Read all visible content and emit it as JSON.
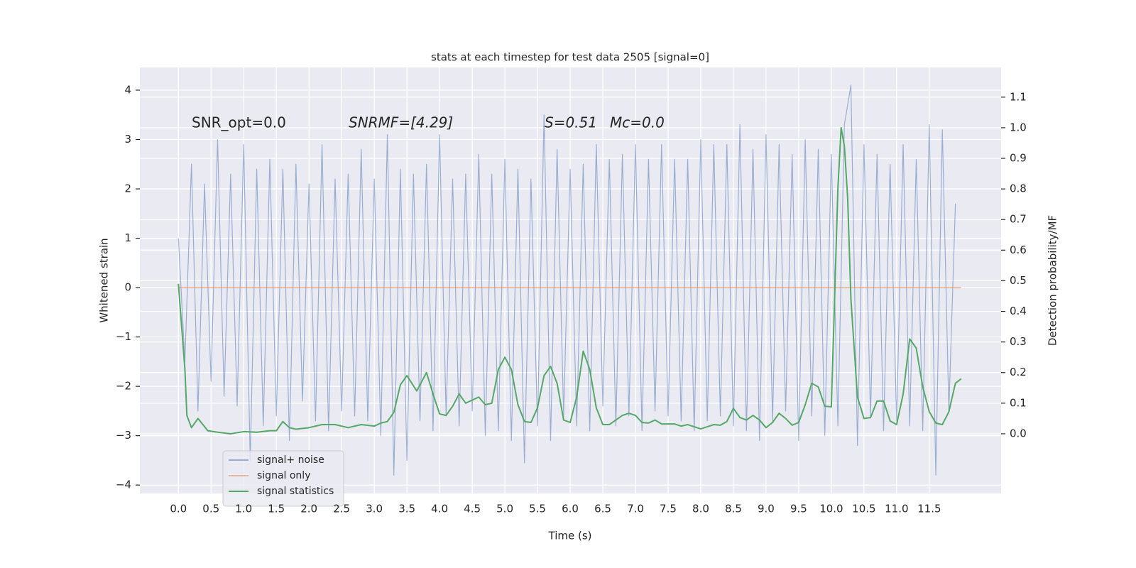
{
  "chart_data": {
    "type": "line",
    "title": "stats at each timestep for test data 2505 [signal=0]",
    "xlabel": "Time (s)",
    "ylabel": "Whitened strain",
    "y2label": "Detection probability/MF",
    "annotations": [
      "SNR_opt=0.0",
      "SNRMF=[4.29]",
      "S=0.51",
      "Mc=0.0"
    ],
    "xlim": [
      -0.59,
      12.6
    ],
    "ylim": [
      -4.17,
      4.46
    ],
    "y2lim": [
      -0.195,
      1.197
    ],
    "xticks": [
      {
        "value": 0,
        "label": "0.0"
      },
      0.5,
      {
        "value": 1,
        "label": "1.0"
      },
      1.5,
      {
        "value": 2,
        "label": "2.0"
      },
      2.5,
      {
        "value": 3,
        "label": "3.0"
      },
      3.5,
      {
        "value": 4,
        "label": "4.0"
      },
      4.5,
      {
        "value": 5,
        "label": "5.0"
      },
      5.5,
      {
        "value": 6,
        "label": "6.0"
      },
      6.5,
      {
        "value": 7,
        "label": "7.0"
      },
      7.5,
      {
        "value": 8,
        "label": "8.0"
      },
      8.5,
      {
        "value": 9,
        "label": "9.0"
      },
      9.5,
      {
        "value": 10,
        "label": "10.0"
      },
      10.5,
      {
        "value": 11,
        "label": "11.0"
      },
      11.5
    ],
    "yticks": [
      {
        "value": -4,
        "label": "−4"
      },
      {
        "value": -3,
        "label": "−3"
      },
      {
        "value": -2,
        "label": "−2"
      },
      {
        "value": -1,
        "label": "−1"
      },
      0,
      1,
      2,
      3,
      4
    ],
    "y2ticks": [
      {
        "value": 0,
        "label": "0.0"
      },
      0.1,
      0.2,
      0.3,
      0.4,
      0.5,
      0.6,
      0.7,
      0.8,
      0.9,
      {
        "value": 1,
        "label": "1.0"
      },
      1.1
    ],
    "grid": true,
    "legend": "lower left",
    "series": [
      {
        "name": "signal+ noise",
        "color": "#4c72b0",
        "alpha": 0.5,
        "x": [
          0,
          0.1,
          0.2,
          0.3,
          0.4,
          0.5,
          0.6,
          0.7,
          0.8,
          0.9,
          1,
          1.1,
          1.2,
          1.3,
          1.4,
          1.5,
          1.6,
          1.7,
          1.8,
          1.9,
          2,
          2.1,
          2.2,
          2.3,
          2.4,
          2.5,
          2.6,
          2.7,
          2.8,
          2.9,
          3,
          3.1,
          3.2,
          3.3,
          3.4,
          3.5,
          3.6,
          3.7,
          3.8,
          3.9,
          4,
          4.1,
          4.2,
          4.3,
          4.4,
          4.5,
          4.6,
          4.7,
          4.8,
          4.9,
          5,
          5.1,
          5.2,
          5.3,
          5.4,
          5.5,
          5.6,
          5.7,
          5.8,
          5.9,
          6,
          6.1,
          6.2,
          6.3,
          6.4,
          6.5,
          6.6,
          6.7,
          6.8,
          6.9,
          7,
          7.1,
          7.2,
          7.3,
          7.4,
          7.5,
          7.6,
          7.7,
          7.8,
          7.9,
          8,
          8.1,
          8.2,
          8.3,
          8.4,
          8.5,
          8.6,
          8.7,
          8.8,
          8.9,
          9,
          9.1,
          9.2,
          9.3,
          9.4,
          9.5,
          9.6,
          9.7,
          9.8,
          9.9,
          10,
          10.1,
          10.2,
          10.3,
          10.4,
          10.5,
          10.6,
          10.7,
          10.8,
          10.9,
          11,
          11.1,
          11.2,
          11.3,
          11.4,
          11.5,
          11.6,
          11.7,
          11.8,
          11.9
        ],
        "values": [
          1.0,
          -1.5,
          2.5,
          -2.5,
          2.1,
          -1.9,
          3.0,
          -2.2,
          2.3,
          -2.4,
          2.9,
          -3.5,
          2.4,
          -2.8,
          2.6,
          -2.6,
          2.4,
          -3.1,
          2.5,
          -2.3,
          2.1,
          -2.7,
          2.9,
          -2.9,
          2.2,
          -2.5,
          2.3,
          -2.6,
          2.8,
          -2.7,
          2.2,
          -3.0,
          3.1,
          -3.8,
          2.4,
          -3.5,
          2.3,
          -2.7,
          2.5,
          -2.9,
          3.1,
          -2.6,
          2.2,
          -2.8,
          2.3,
          -2.5,
          2.7,
          -3.0,
          2.3,
          -2.9,
          2.6,
          -3.1,
          2.4,
          -3.55,
          2.2,
          -2.8,
          3.5,
          -3.1,
          2.8,
          -2.6,
          2.4,
          -2.8,
          2.5,
          -2.9,
          2.9,
          -2.4,
          2.6,
          -2.8,
          2.7,
          -2.6,
          2.9,
          -2.9,
          2.6,
          -2.5,
          2.9,
          -2.6,
          2.6,
          -2.7,
          2.6,
          -2.9,
          3.0,
          -2.7,
          2.9,
          -2.6,
          2.9,
          -2.8,
          3.3,
          -2.9,
          2.8,
          -3.1,
          3.1,
          -2.7,
          2.9,
          -2.5,
          2.7,
          -3.1,
          3.0,
          -2.6,
          2.8,
          -3.0,
          2.7,
          -2.8,
          3.3,
          4.1,
          -3.2,
          2.9,
          -2.6,
          2.7,
          -2.9,
          2.5,
          -2.7,
          2.9,
          -2.8,
          2.6,
          -2.9,
          3.3,
          -3.8,
          3.2,
          -2.5,
          1.7
        ]
      },
      {
        "name": "signal only",
        "color": "#dd8452",
        "alpha": 0.5,
        "x": [
          0,
          11.99
        ],
        "values": [
          0,
          0
        ]
      },
      {
        "name": "signal statistics",
        "color": "#55a868",
        "alpha": 1,
        "axis": "y2",
        "x": [
          0,
          0.1,
          0.13,
          0.2,
          0.3,
          0.45,
          0.6,
          0.8,
          1.0,
          1.2,
          1.4,
          1.5,
          1.6,
          1.7,
          1.8,
          2.0,
          2.2,
          2.4,
          2.6,
          2.8,
          3.0,
          3.1,
          3.2,
          3.3,
          3.4,
          3.5,
          3.65,
          3.8,
          3.9,
          4.0,
          4.1,
          4.2,
          4.3,
          4.4,
          4.6,
          4.7,
          4.8,
          4.9,
          5.0,
          5.1,
          5.2,
          5.3,
          5.4,
          5.5,
          5.6,
          5.7,
          5.8,
          5.9,
          6.0,
          6.1,
          6.2,
          6.3,
          6.4,
          6.5,
          6.6,
          6.7,
          6.8,
          6.9,
          7.0,
          7.1,
          7.2,
          7.3,
          7.4,
          7.5,
          7.6,
          7.7,
          7.8,
          7.9,
          8.0,
          8.1,
          8.2,
          8.3,
          8.4,
          8.5,
          8.6,
          8.7,
          8.8,
          8.9,
          9.0,
          9.1,
          9.2,
          9.3,
          9.4,
          9.5,
          9.6,
          9.7,
          9.8,
          9.9,
          10.0,
          10.05,
          10.1,
          10.15,
          10.2,
          10.25,
          10.3,
          10.4,
          10.5,
          10.6,
          10.7,
          10.8,
          10.9,
          11.0,
          11.1,
          11.2,
          11.3,
          11.4,
          11.5,
          11.6,
          11.7,
          11.8,
          11.9,
          11.99
        ],
        "values": [
          0.49,
          0.21,
          0.06,
          0.02,
          0.05,
          0.01,
          0.005,
          0,
          0.007,
          0.005,
          0.01,
          0.01,
          0.04,
          0.02,
          0.015,
          0.02,
          0.03,
          0.03,
          0.02,
          0.03,
          0.025,
          0.035,
          0.04,
          0.07,
          0.16,
          0.19,
          0.14,
          0.2,
          0.13,
          0.065,
          0.06,
          0.09,
          0.13,
          0.1,
          0.12,
          0.095,
          0.1,
          0.21,
          0.25,
          0.21,
          0.095,
          0.04,
          0.037,
          0.085,
          0.19,
          0.22,
          0.165,
          0.045,
          0.037,
          0.12,
          0.27,
          0.21,
          0.085,
          0.03,
          0.03,
          0.045,
          0.06,
          0.067,
          0.06,
          0.037,
          0.035,
          0.045,
          0.032,
          0.032,
          0.032,
          0.025,
          0.03,
          0.023,
          0.016,
          0.023,
          0.03,
          0.028,
          0.04,
          0.083,
          0.053,
          0.045,
          0.06,
          0.045,
          0.02,
          0.037,
          0.067,
          0.05,
          0.028,
          0.037,
          0.095,
          0.165,
          0.153,
          0.09,
          0.088,
          0.44,
          0.8,
          1.0,
          0.94,
          0.77,
          0.44,
          0.12,
          0.05,
          0.053,
          0.107,
          0.107,
          0.042,
          0.03,
          0.13,
          0.31,
          0.28,
          0.153,
          0.072,
          0.035,
          0.03,
          0.072,
          0.165,
          0.18
        ]
      }
    ]
  }
}
